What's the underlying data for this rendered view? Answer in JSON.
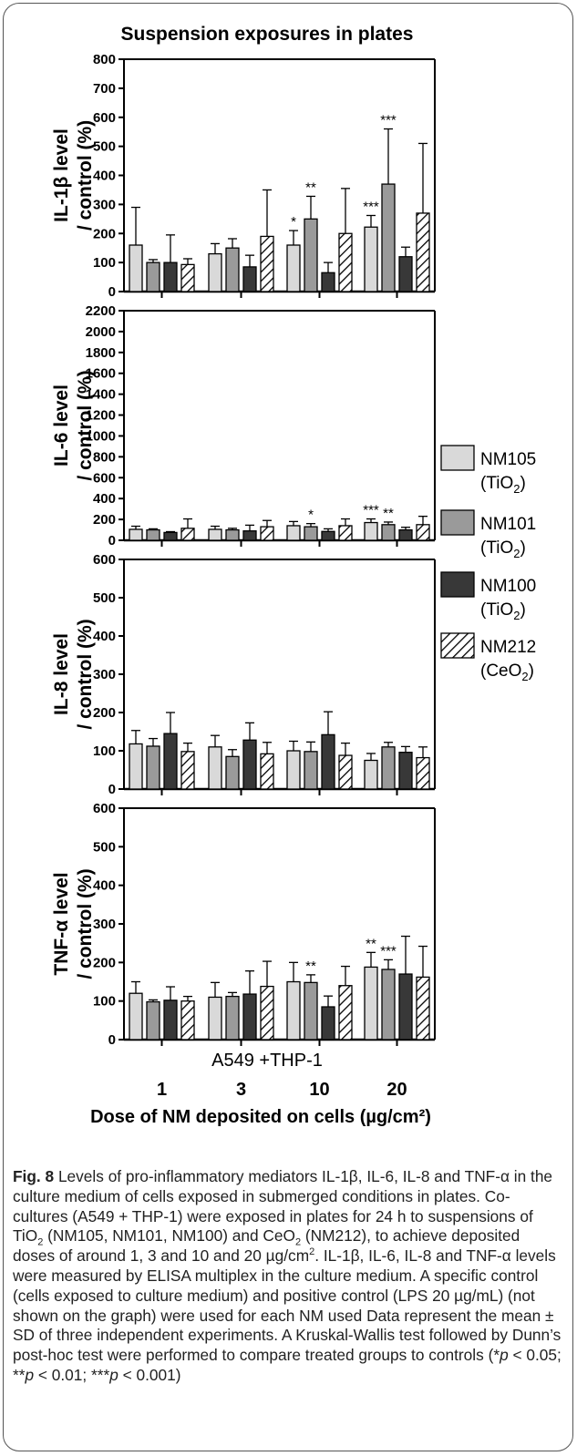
{
  "chart_data": {
    "type": "bar",
    "title": "Suspension exposures in plates",
    "xlabel": "Dose of NM deposited on cells (µg/cm²)",
    "group_label": "A549 +THP-1",
    "categories": [
      "1",
      "3",
      "10",
      "20"
    ],
    "legend": [
      {
        "name": "NM105",
        "sub": "(TiO",
        "subscript": "2",
        "close": ")",
        "color": "#d9d9d9",
        "pattern": "solid"
      },
      {
        "name": "NM101",
        "sub": "(TiO",
        "subscript": "2",
        "close": ")",
        "color": "#9a9a9a",
        "pattern": "solid"
      },
      {
        "name": "NM100",
        "sub": "(TiO",
        "subscript": "2",
        "close": ")",
        "color": "#383838",
        "pattern": "solid"
      },
      {
        "name": "NM212",
        "sub": "(CeO",
        "subscript": "2",
        "close": ")",
        "color": "#ffffff",
        "pattern": "hatched"
      }
    ],
    "panels": [
      {
        "ylabel_line1": "IL-1β level",
        "ylabel_line2": "/ control (%)",
        "ylim": [
          0,
          800
        ],
        "ticks": [
          0,
          100,
          200,
          300,
          400,
          500,
          600,
          700,
          800
        ],
        "values": [
          [
            160,
            100,
            100,
            93
          ],
          [
            130,
            150,
            85,
            190
          ],
          [
            160,
            250,
            65,
            200
          ],
          [
            222,
            370,
            120,
            270
          ]
        ],
        "errors": [
          [
            130,
            10,
            95,
            20
          ],
          [
            35,
            32,
            40,
            160
          ],
          [
            50,
            78,
            35,
            155
          ],
          [
            40,
            190,
            33,
            240
          ]
        ],
        "annotations": [
          [
            "",
            "",
            "",
            ""
          ],
          [
            "",
            "",
            "",
            ""
          ],
          [
            "*",
            "**",
            "",
            ""
          ],
          [
            "***",
            "***",
            "",
            ""
          ]
        ]
      },
      {
        "ylabel_line1": "IL-6 level",
        "ylabel_line2": "/ control (%)",
        "ylim": [
          0,
          2200
        ],
        "ticks": [
          0,
          200,
          400,
          600,
          800,
          1000,
          1200,
          1400,
          1600,
          1800,
          2000,
          2200
        ],
        "values": [
          [
            105,
            100,
            75,
            115
          ],
          [
            105,
            100,
            90,
            130
          ],
          [
            140,
            130,
            85,
            140
          ],
          [
            170,
            150,
            100,
            150
          ]
        ],
        "errors": [
          [
            30,
            10,
            8,
            90
          ],
          [
            30,
            15,
            55,
            60
          ],
          [
            40,
            30,
            25,
            65
          ],
          [
            35,
            25,
            25,
            80
          ]
        ],
        "annotations": [
          [
            "",
            "",
            "",
            ""
          ],
          [
            "",
            "",
            "",
            ""
          ],
          [
            "",
            "*",
            "",
            ""
          ],
          [
            "***",
            "**",
            "",
            ""
          ]
        ]
      },
      {
        "ylabel_line1": "IL-8 level",
        "ylabel_line2": "/ control (%)",
        "ylim": [
          0,
          600
        ],
        "ticks": [
          0,
          100,
          200,
          300,
          400,
          500,
          600
        ],
        "values": [
          [
            118,
            112,
            145,
            98
          ],
          [
            110,
            85,
            128,
            92
          ],
          [
            100,
            98,
            142,
            88
          ],
          [
            75,
            110,
            96,
            82
          ]
        ],
        "errors": [
          [
            35,
            20,
            55,
            22
          ],
          [
            30,
            18,
            45,
            30
          ],
          [
            25,
            25,
            60,
            32
          ],
          [
            18,
            12,
            15,
            28
          ]
        ],
        "annotations": [
          [
            "",
            "",
            "",
            ""
          ],
          [
            "",
            "",
            "",
            ""
          ],
          [
            "",
            "",
            "",
            ""
          ],
          [
            "",
            "",
            "",
            ""
          ]
        ]
      },
      {
        "ylabel_line1": "TNF-α level",
        "ylabel_line2": "/ control (%)",
        "ylim": [
          0,
          600
        ],
        "ticks": [
          0,
          100,
          200,
          300,
          400,
          500,
          600
        ],
        "values": [
          [
            120,
            98,
            102,
            100
          ],
          [
            110,
            112,
            118,
            138
          ],
          [
            150,
            148,
            85,
            140
          ],
          [
            188,
            182,
            170,
            162
          ]
        ],
        "errors": [
          [
            30,
            5,
            35,
            12
          ],
          [
            38,
            10,
            60,
            65
          ],
          [
            50,
            20,
            28,
            50
          ],
          [
            38,
            25,
            98,
            80
          ]
        ],
        "annotations": [
          [
            "",
            "",
            "",
            ""
          ],
          [
            "",
            "",
            "",
            ""
          ],
          [
            "",
            "**",
            "",
            ""
          ],
          [
            "**",
            "***",
            "",
            ""
          ]
        ]
      }
    ],
    "grid": false,
    "legend_position": "right"
  },
  "caption": {
    "fig_label": "Fig. 8",
    "lines": [
      " Levels of pro-inflammatory mediators IL-1β, IL-6, IL-8 and TNF-α in the culture medium of cells exposed in submerged conditions in plates. Co-cultures (A549 + THP-1) were exposed in plates for 24 h to suspensions of TiO",
      "2",
      " (NM105, NM101, NM100) and CeO",
      "2",
      " (NM212), to achieve deposited doses of around 1, 3 and 10 and 20 µg/cm",
      "2",
      ". IL-1β, IL-6, IL-8 and TNF-α levels were measured by ELISA multiplex in the culture medium. A specific control (cells exposed to culture medium) and positive control (LPS 20 µg/mL) (not shown on the graph) were used for each NM used Data represent the mean ± SD of three independent experiments. A Kruskal-Wallis test followed by Dunn’s post-hoc test were performed to compare treated groups to controls (*",
      "p",
      " < 0.05; **",
      "p",
      " < 0.01; ***",
      "p",
      " < 0.001)"
    ]
  }
}
